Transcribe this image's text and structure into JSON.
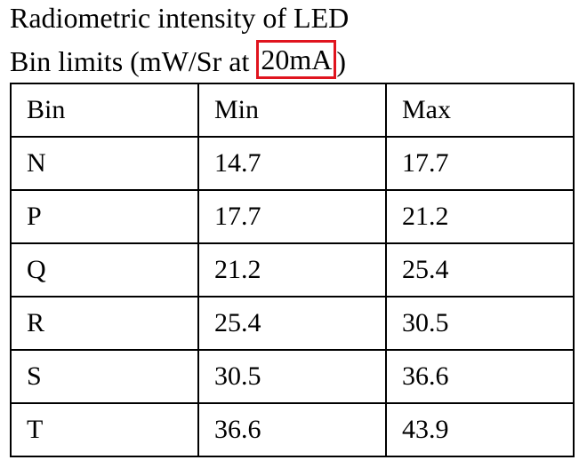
{
  "header": {
    "title": "Radiometric intensity of LED",
    "subtitle": {
      "prefix": "Bin limits (mW/Sr at",
      "highlight": "20mA",
      "suffix": ")"
    }
  },
  "table": {
    "columns": [
      "Bin",
      "Min",
      "Max"
    ],
    "rows": [
      [
        "N",
        "14.7",
        "17.7"
      ],
      [
        "P",
        "17.7",
        "21.2"
      ],
      [
        "Q",
        "21.2",
        "25.4"
      ],
      [
        "R",
        "25.4",
        "30.5"
      ],
      [
        "S",
        "30.5",
        "36.6"
      ],
      [
        "T",
        "36.6",
        "43.9"
      ]
    ]
  }
}
